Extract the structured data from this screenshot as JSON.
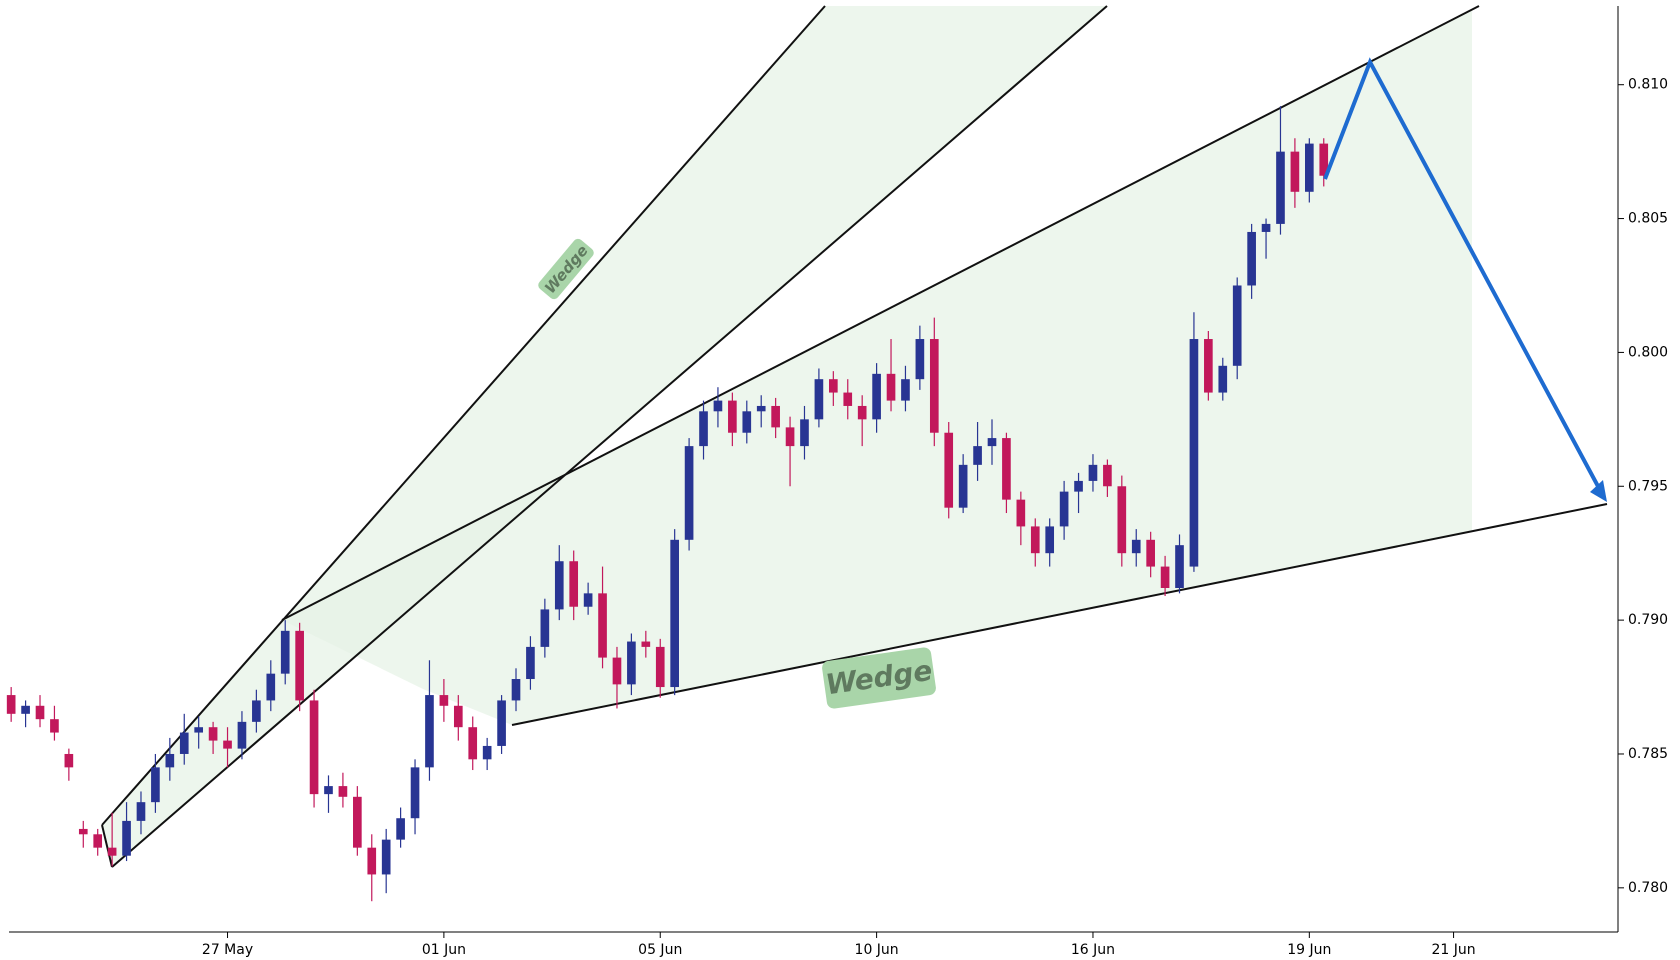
{
  "chart_data": {
    "type": "candlestick",
    "ohlc": [
      [
        0.7872,
        0.7875,
        0.7862,
        0.7865
      ],
      [
        0.7865,
        0.787,
        0.786,
        0.7868
      ],
      [
        0.7868,
        0.7872,
        0.786,
        0.7863
      ],
      [
        0.7863,
        0.7868,
        0.7855,
        0.7858
      ],
      [
        0.785,
        0.7852,
        0.784,
        0.7845
      ],
      [
        0.7822,
        0.7825,
        0.7815,
        0.782
      ],
      [
        0.782,
        0.7822,
        0.7812,
        0.7815
      ],
      [
        0.7815,
        0.7828,
        0.7808,
        0.7812
      ],
      [
        0.7812,
        0.7832,
        0.781,
        0.7825
      ],
      [
        0.7825,
        0.7836,
        0.782,
        0.7832
      ],
      [
        0.7832,
        0.785,
        0.7828,
        0.7845
      ],
      [
        0.7845,
        0.7856,
        0.784,
        0.785
      ],
      [
        0.785,
        0.7865,
        0.7846,
        0.7858
      ],
      [
        0.7858,
        0.7864,
        0.7852,
        0.786
      ],
      [
        0.786,
        0.7862,
        0.785,
        0.7855
      ],
      [
        0.7855,
        0.786,
        0.7845,
        0.7852
      ],
      [
        0.7852,
        0.7866,
        0.7848,
        0.7862
      ],
      [
        0.7862,
        0.7874,
        0.7858,
        0.787
      ],
      [
        0.787,
        0.7885,
        0.7866,
        0.788
      ],
      [
        0.788,
        0.79,
        0.7876,
        0.7896
      ],
      [
        0.7896,
        0.7899,
        0.7866,
        0.787
      ],
      [
        0.787,
        0.7874,
        0.783,
        0.7835
      ],
      [
        0.7835,
        0.7842,
        0.7828,
        0.7838
      ],
      [
        0.7838,
        0.7843,
        0.783,
        0.7834
      ],
      [
        0.7834,
        0.7838,
        0.7812,
        0.7815
      ],
      [
        0.7815,
        0.782,
        0.7795,
        0.7805
      ],
      [
        0.7805,
        0.7822,
        0.7798,
        0.7818
      ],
      [
        0.7818,
        0.783,
        0.7815,
        0.7826
      ],
      [
        0.7826,
        0.7848,
        0.782,
        0.7845
      ],
      [
        0.7845,
        0.7885,
        0.784,
        0.7872
      ],
      [
        0.7872,
        0.7878,
        0.7862,
        0.7868
      ],
      [
        0.7868,
        0.7872,
        0.7855,
        0.786
      ],
      [
        0.786,
        0.7864,
        0.7844,
        0.7848
      ],
      [
        0.7848,
        0.7856,
        0.7844,
        0.7853
      ],
      [
        0.7853,
        0.7872,
        0.785,
        0.787
      ],
      [
        0.787,
        0.7882,
        0.7866,
        0.7878
      ],
      [
        0.7878,
        0.7894,
        0.7874,
        0.789
      ],
      [
        0.789,
        0.7908,
        0.7886,
        0.7904
      ],
      [
        0.7904,
        0.7928,
        0.79,
        0.7922
      ],
      [
        0.7922,
        0.7926,
        0.79,
        0.7905
      ],
      [
        0.7905,
        0.7914,
        0.7902,
        0.791
      ],
      [
        0.791,
        0.792,
        0.7882,
        0.7886
      ],
      [
        0.7886,
        0.789,
        0.7867,
        0.7876
      ],
      [
        0.7876,
        0.7895,
        0.7872,
        0.7892
      ],
      [
        0.7892,
        0.7896,
        0.7886,
        0.789
      ],
      [
        0.789,
        0.7893,
        0.7871,
        0.7875
      ],
      [
        0.7875,
        0.7934,
        0.7872,
        0.793
      ],
      [
        0.793,
        0.7968,
        0.7926,
        0.7965
      ],
      [
        0.7965,
        0.7982,
        0.796,
        0.7978
      ],
      [
        0.7978,
        0.7987,
        0.7972,
        0.7982
      ],
      [
        0.7982,
        0.7985,
        0.7965,
        0.797
      ],
      [
        0.797,
        0.7982,
        0.7966,
        0.7978
      ],
      [
        0.7978,
        0.7984,
        0.7972,
        0.798
      ],
      [
        0.798,
        0.7983,
        0.7968,
        0.7972
      ],
      [
        0.7972,
        0.7976,
        0.795,
        0.7965
      ],
      [
        0.7965,
        0.798,
        0.796,
        0.7975
      ],
      [
        0.7975,
        0.7994,
        0.7972,
        0.799
      ],
      [
        0.799,
        0.7993,
        0.798,
        0.7985
      ],
      [
        0.7985,
        0.799,
        0.7975,
        0.798
      ],
      [
        0.798,
        0.7984,
        0.7965,
        0.7975
      ],
      [
        0.7975,
        0.7996,
        0.797,
        0.7992
      ],
      [
        0.7992,
        0.8005,
        0.7978,
        0.7982
      ],
      [
        0.7982,
        0.7995,
        0.7978,
        0.799
      ],
      [
        0.799,
        0.801,
        0.7986,
        0.8005
      ],
      [
        0.8005,
        0.8013,
        0.7965,
        0.797
      ],
      [
        0.797,
        0.7974,
        0.7938,
        0.7942
      ],
      [
        0.7942,
        0.7962,
        0.794,
        0.7958
      ],
      [
        0.7958,
        0.7974,
        0.7952,
        0.7965
      ],
      [
        0.7965,
        0.7975,
        0.7958,
        0.7968
      ],
      [
        0.7968,
        0.797,
        0.794,
        0.7945
      ],
      [
        0.7945,
        0.7948,
        0.7928,
        0.7935
      ],
      [
        0.7935,
        0.7938,
        0.792,
        0.7925
      ],
      [
        0.7925,
        0.7938,
        0.792,
        0.7935
      ],
      [
        0.7935,
        0.7952,
        0.793,
        0.7948
      ],
      [
        0.7948,
        0.7955,
        0.794,
        0.7952
      ],
      [
        0.7952,
        0.7962,
        0.7948,
        0.7958
      ],
      [
        0.7958,
        0.796,
        0.7946,
        0.795
      ],
      [
        0.795,
        0.7954,
        0.792,
        0.7925
      ],
      [
        0.7925,
        0.7934,
        0.792,
        0.793
      ],
      [
        0.793,
        0.7933,
        0.7916,
        0.792
      ],
      [
        0.792,
        0.7924,
        0.7909,
        0.7912
      ],
      [
        0.7912,
        0.7932,
        0.791,
        0.7928
      ],
      [
        0.792,
        0.8015,
        0.7918,
        0.8005
      ],
      [
        0.8005,
        0.8008,
        0.7982,
        0.7985
      ],
      [
        0.7985,
        0.7998,
        0.7982,
        0.7995
      ],
      [
        0.7995,
        0.8028,
        0.799,
        0.8025
      ],
      [
        0.8025,
        0.8048,
        0.802,
        0.8045
      ],
      [
        0.8045,
        0.805,
        0.8035,
        0.8048
      ],
      [
        0.8048,
        0.8092,
        0.8044,
        0.8075
      ],
      [
        0.8075,
        0.808,
        0.8054,
        0.806
      ],
      [
        0.806,
        0.808,
        0.8056,
        0.8078
      ],
      [
        0.8078,
        0.808,
        0.8062,
        0.8066
      ]
    ],
    "up_color": "#283593",
    "down_color": "#c2185b",
    "xlim": [
      -0.15,
      111.4
    ],
    "xticks": [
      {
        "value": 15,
        "label": "27 May"
      },
      {
        "value": 30,
        "label": "01 Jun"
      },
      {
        "value": 45,
        "label": "05 Jun"
      },
      {
        "value": 60,
        "label": "10 Jun"
      },
      {
        "value": 75,
        "label": "16 Jun"
      },
      {
        "value": 90,
        "label": "19 Jun"
      },
      {
        "value": 100,
        "label": "21 Jun"
      }
    ],
    "ylim": [
      0.77835,
      0.81294
    ],
    "yticks": [
      {
        "value": 0.78,
        "label": "0.780"
      },
      0.785,
      {
        "value": 0.79,
        "label": "0.790"
      },
      0.795,
      {
        "value": 0.8,
        "label": "0.800"
      },
      0.805,
      {
        "value": 0.81,
        "label": "0.810"
      }
    ],
    "annotations": [
      "Wedge",
      "Wedge"
    ]
  }
}
